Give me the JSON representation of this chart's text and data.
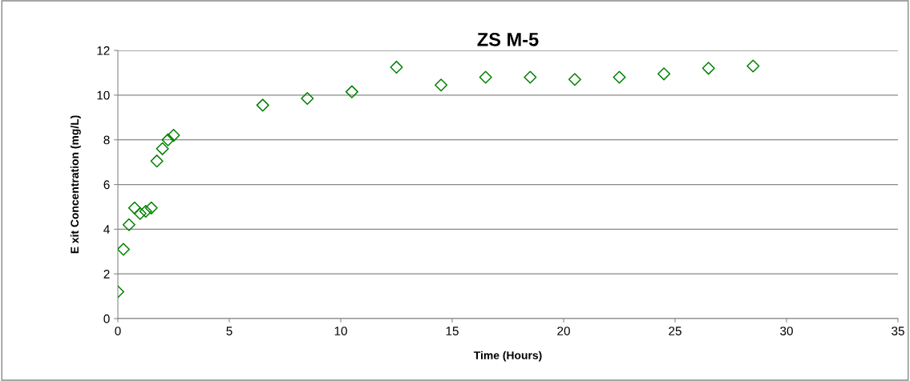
{
  "chart_data": {
    "type": "scatter",
    "title": "ZS M-5",
    "xlabel": "Time (Hours)",
    "ylabel": "E xit Concentration (mg/L)",
    "x": [
      0,
      0.25,
      0.5,
      0.75,
      1.0,
      1.25,
      1.5,
      1.75,
      2.0,
      2.25,
      2.5,
      6.5,
      8.5,
      10.5,
      12.5,
      14.5,
      16.5,
      18.5,
      20.5,
      22.5,
      24.5,
      26.5,
      28.5
    ],
    "series": [
      {
        "color": "#008000",
        "values": [
          1.2,
          3.1,
          4.2,
          4.95,
          4.7,
          4.8,
          4.95,
          7.05,
          7.6,
          8.0,
          8.2,
          9.55,
          9.85,
          10.15,
          11.25,
          10.45,
          10.8,
          10.8,
          10.7,
          10.8,
          10.95,
          11.2,
          11.3
        ]
      }
    ],
    "xlim": [
      0,
      35
    ],
    "xticks": [
      0,
      5,
      10,
      15,
      20,
      25,
      30,
      35
    ],
    "ylim": [
      0,
      12
    ],
    "yticks": [
      0,
      2,
      4,
      6,
      8,
      10,
      12
    ],
    "grid": "y",
    "legend": false,
    "marker": "diamond"
  }
}
